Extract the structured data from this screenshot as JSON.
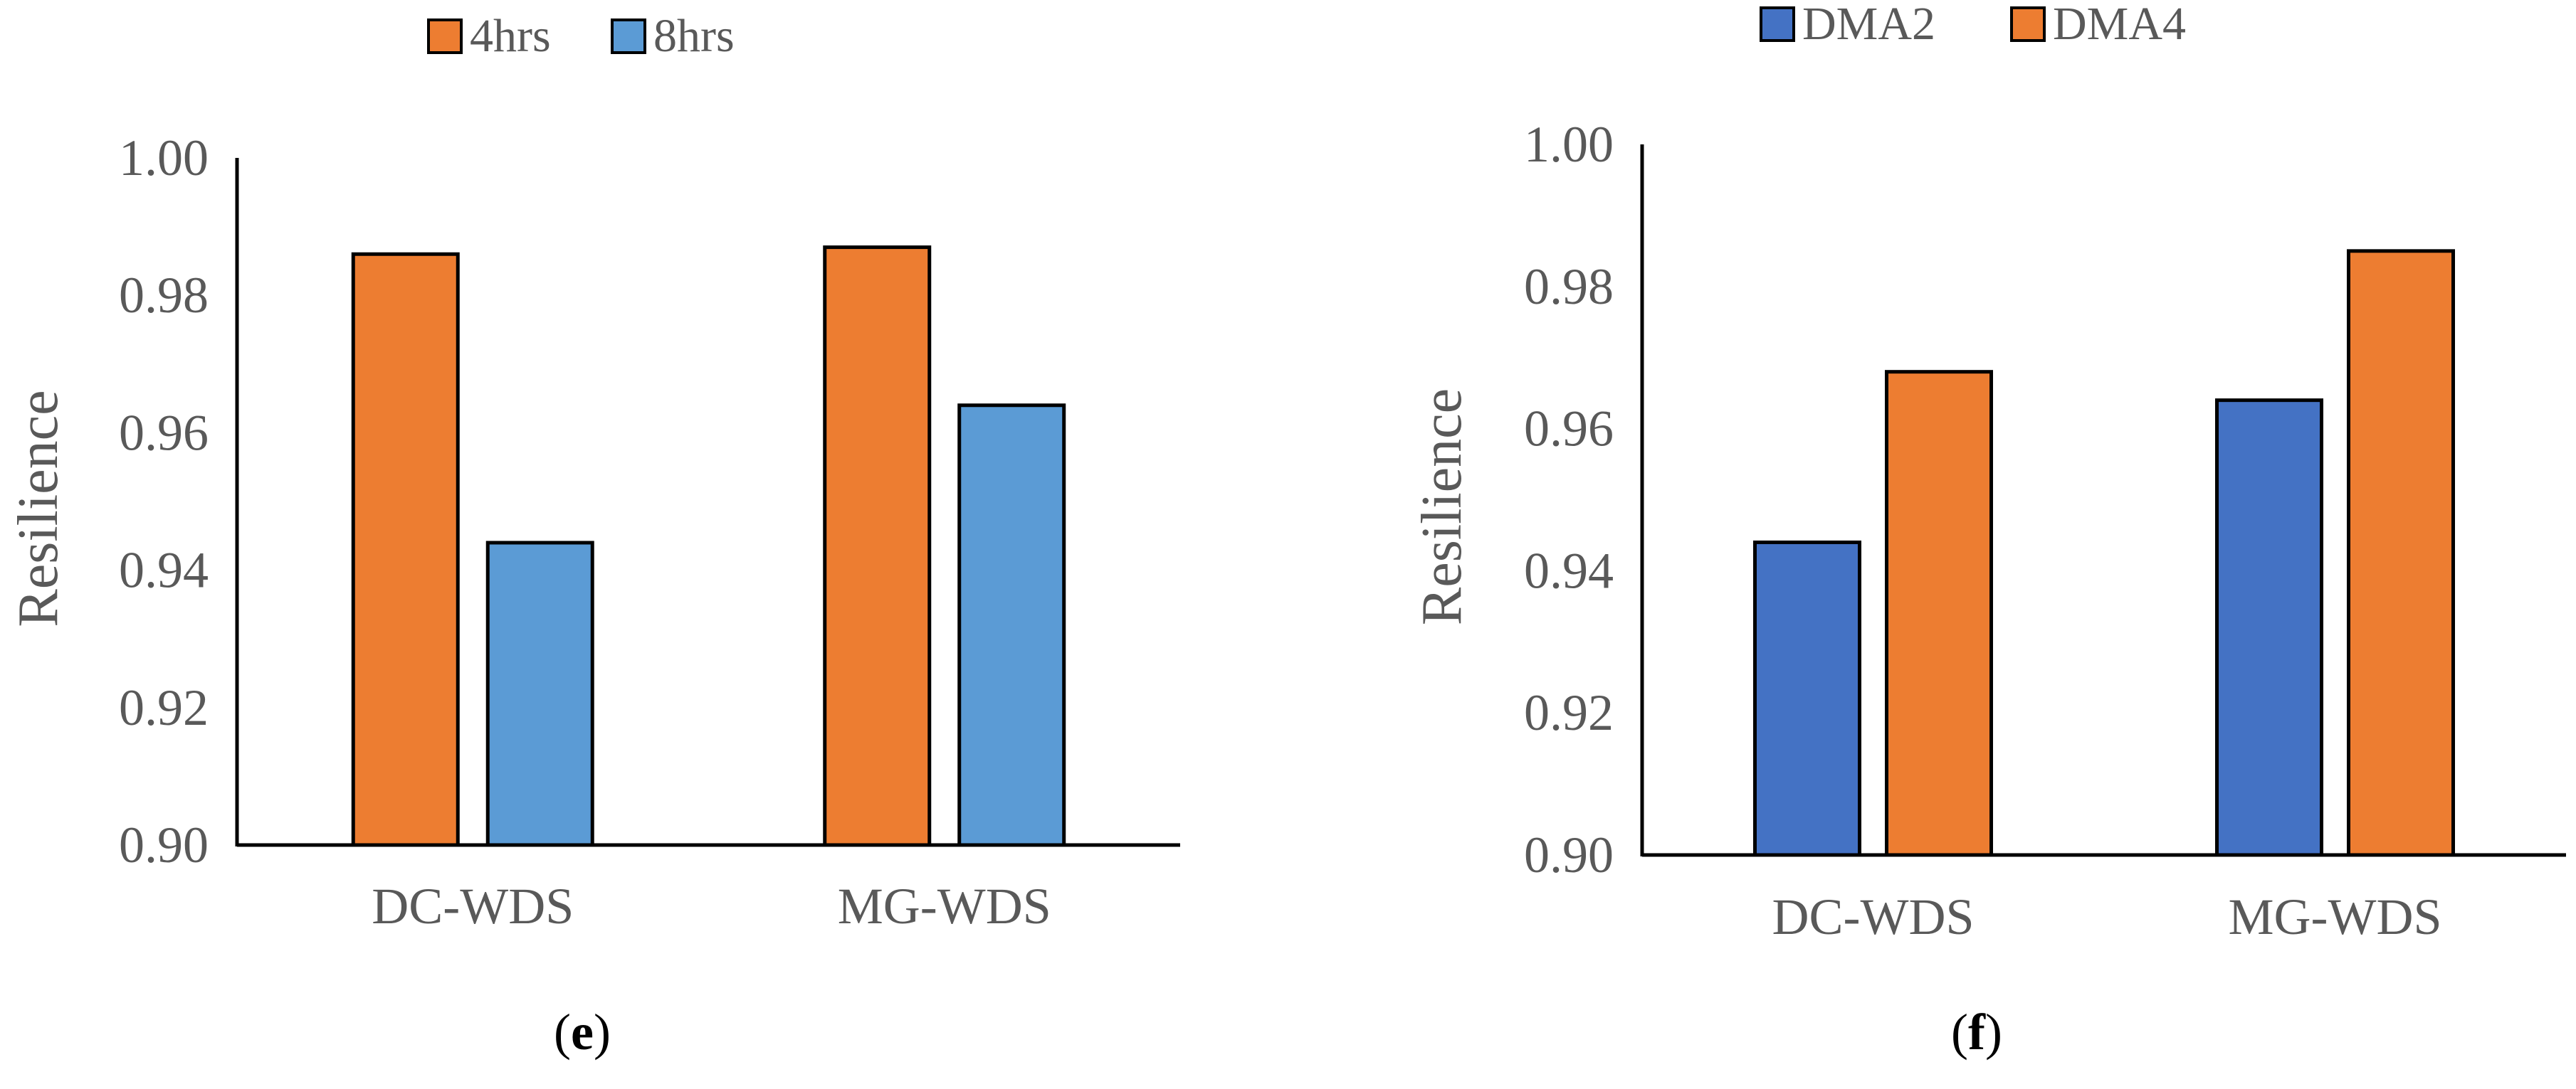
{
  "chart_data": [
    {
      "type": "bar",
      "panel": "e",
      "categories": [
        "DC-WDS",
        "MG-WDS"
      ],
      "series": [
        {
          "name": "4hrs",
          "color": "#ED7D31",
          "values": [
            0.986,
            0.987
          ]
        },
        {
          "name": "8hrs",
          "color": "#5B9BD5",
          "values": [
            0.944,
            0.964
          ]
        }
      ],
      "ylabel": "Resilience",
      "xlabel": "",
      "ylim": [
        0.9,
        1.0
      ],
      "yticks": [
        "0.90",
        "0.92",
        "0.94",
        "0.96",
        "0.98",
        "1.00"
      ],
      "legend_position": "top",
      "grid": false
    },
    {
      "type": "bar",
      "panel": "f",
      "categories": [
        "DC-WDS",
        "MG-WDS"
      ],
      "series": [
        {
          "name": "DMA2",
          "color": "#4472C4",
          "values": [
            0.944,
            0.964
          ]
        },
        {
          "name": "DMA4",
          "color": "#ED7D31",
          "values": [
            0.968,
            0.985
          ]
        }
      ],
      "ylabel": "Resilience",
      "xlabel": "",
      "ylim": [
        0.9,
        1.0
      ],
      "yticks": [
        "0.90",
        "0.92",
        "0.94",
        "0.96",
        "0.98",
        "1.00"
      ],
      "legend_position": "top",
      "grid": false
    }
  ]
}
